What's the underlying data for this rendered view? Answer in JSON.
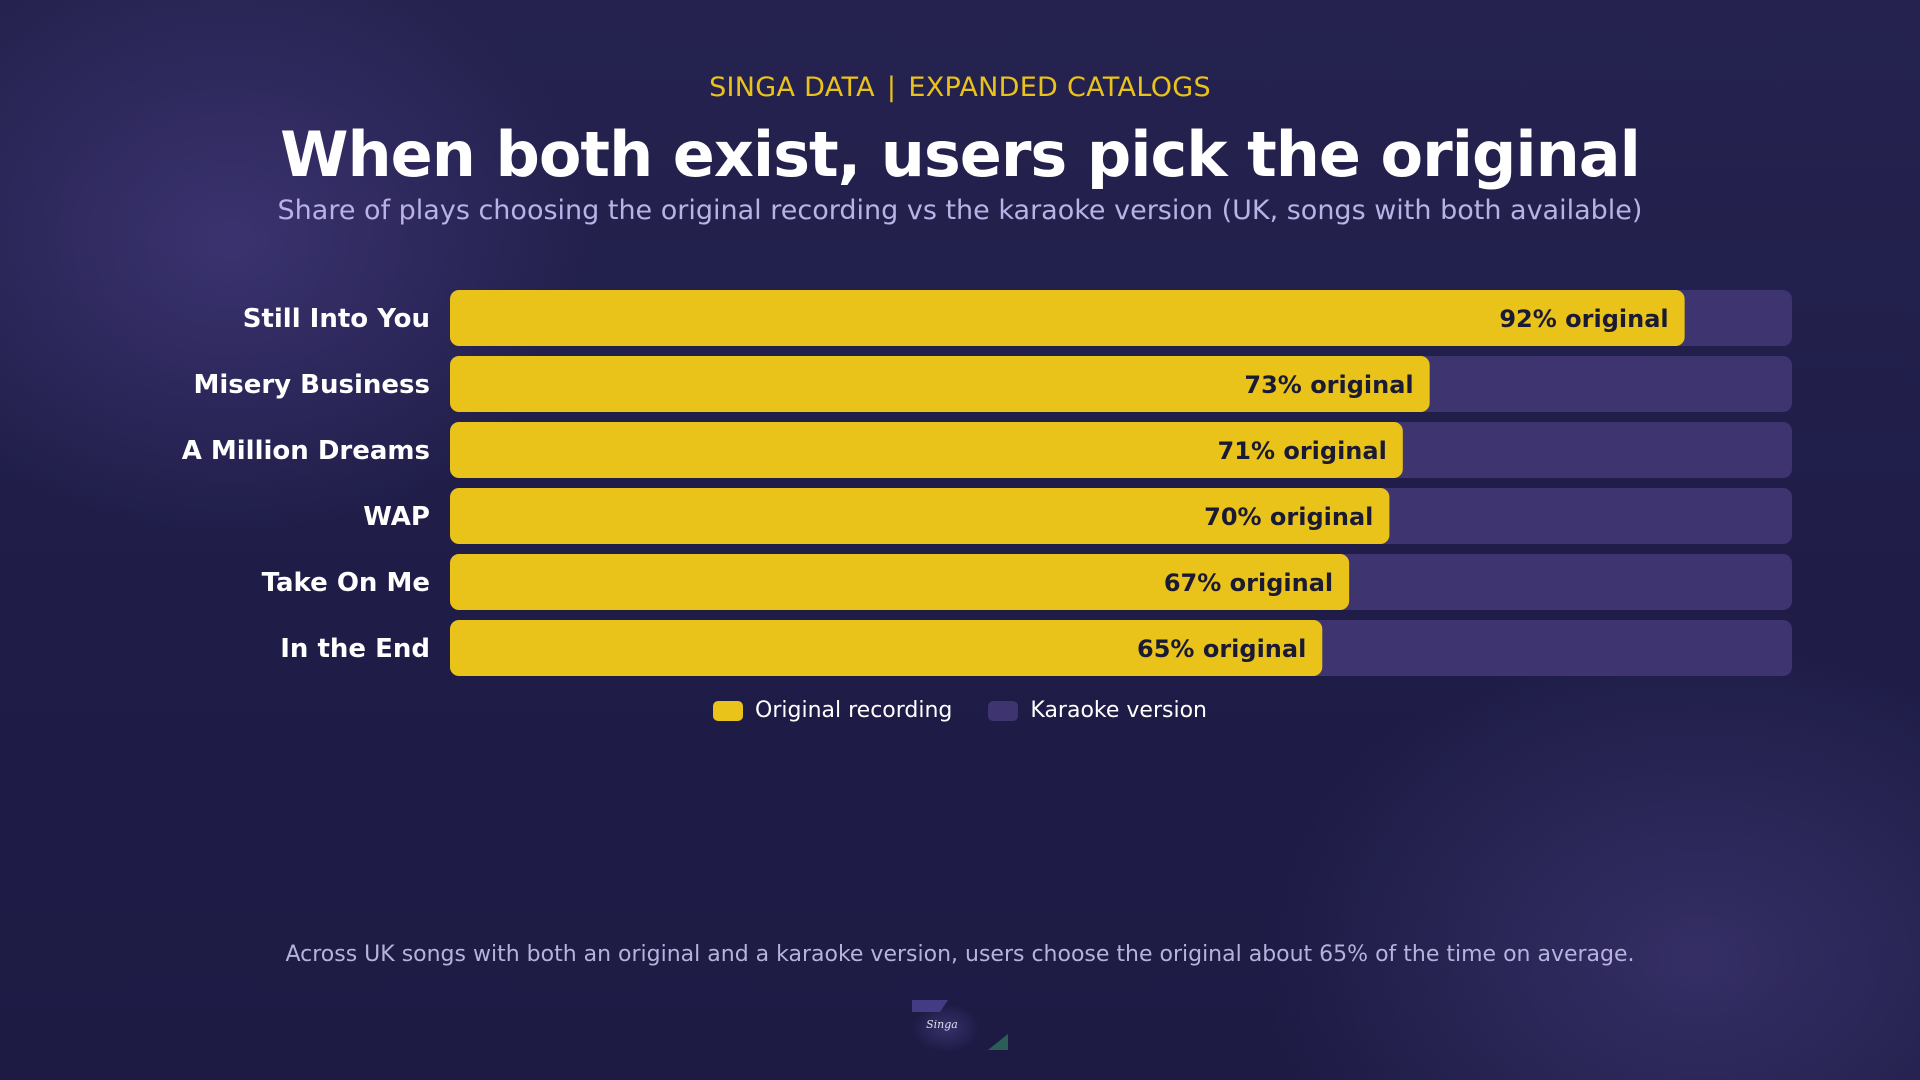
{
  "header": {
    "kicker_left": "SINGA DATA",
    "kicker_sep": "|",
    "kicker_right": "EXPANDED CATALOGS",
    "title": "When both exist, users pick the original",
    "subtitle": "Share of plays choosing the original recording vs the karaoke version (UK, songs with both available)"
  },
  "chart_data": {
    "type": "bar",
    "orientation": "horizontal",
    "stacked_to": 100,
    "categories": [
      "Still Into You",
      "Misery Business",
      "A Million Dreams",
      "WAP",
      "Take On Me",
      "In the End"
    ],
    "series": [
      {
        "name": "Original recording",
        "values": [
          92,
          73,
          71,
          70,
          67,
          65
        ],
        "color": "#e9c31a"
      },
      {
        "name": "Karaoke version",
        "values": [
          8,
          27,
          29,
          30,
          33,
          35
        ],
        "color": "#3d3470"
      }
    ],
    "data_labels": [
      "92% original",
      "73% original",
      "71% original",
      "70% original",
      "67% original",
      "65% original"
    ],
    "xlim": [
      0,
      100
    ],
    "grid": false,
    "legend_position": "bottom-center"
  },
  "legend": {
    "original_label": "Original recording",
    "karaoke_label": "Karaoke version",
    "original_color": "#e9c31a",
    "karaoke_color": "#3d3470"
  },
  "footnote": "Across UK songs with both an original and a karaoke version, users choose the original about 65% of the time on average.",
  "logo": {
    "text": "Singa",
    "icon": "singa-logo-icon"
  }
}
